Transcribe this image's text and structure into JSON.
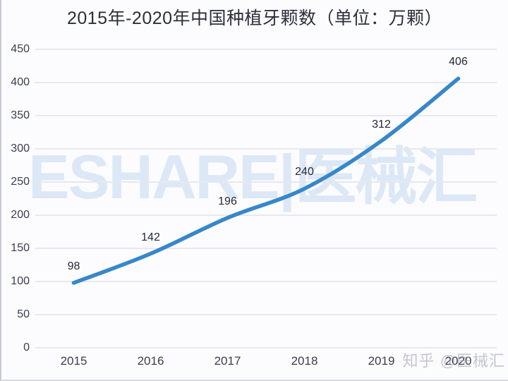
{
  "chart_data": {
    "type": "line",
    "title": "2015年-2020年中国种植牙颗数（单位：万颗）",
    "categories": [
      "2015",
      "2016",
      "2017",
      "2018",
      "2019",
      "2020"
    ],
    "values": [
      98,
      142,
      196,
      240,
      312,
      406
    ],
    "data_labels": [
      "98",
      "142",
      "196",
      "240",
      "312",
      "406"
    ],
    "xlabel": "",
    "ylabel": "",
    "ylim": [
      0,
      450
    ],
    "yticks": [
      0,
      50,
      100,
      150,
      200,
      250,
      300,
      350,
      400,
      450
    ],
    "grid": "horizontal",
    "legend_position": "none",
    "smoothed_line": true,
    "colors": {
      "line": "#3787c9",
      "title_text": "#2e2f3c",
      "axis_text": "#3c3d4e",
      "data_label_text": "#26273a",
      "gridline": "#e7e8ef",
      "background": "#fcfcfe",
      "watermark_center": "#dce8f6",
      "watermark_corner": "#b9bac3"
    }
  },
  "watermarks": {
    "center": "ESHARE|医械汇",
    "bottom_right": "知乎 @医械汇"
  }
}
